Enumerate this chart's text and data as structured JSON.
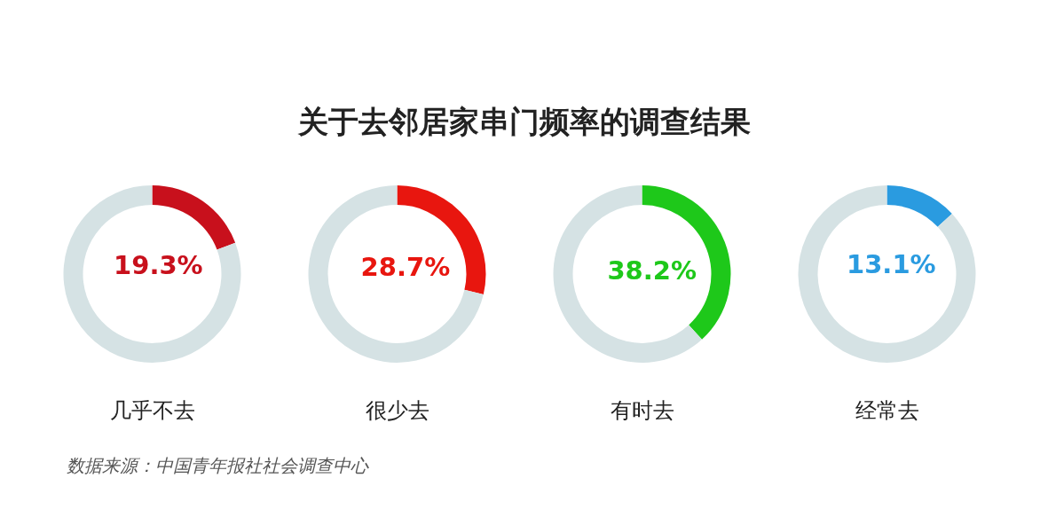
{
  "chart_data": [
    {
      "type": "donut",
      "title": "关于去邻居家串门频率的调查结果",
      "xlabel": "几乎不去",
      "categories": [
        null,
        null
      ],
      "values": [
        19.3,
        80.7
      ],
      "value_labels": [
        "19.3%",
        null
      ],
      "colors": [
        "#c8101c",
        "#d5e2e4"
      ],
      "annotations": [
        "数据来源：中国青年报社社会调查中心"
      ]
    },
    {
      "type": "donut",
      "xlabel": "很少去",
      "categories": [
        null,
        null
      ],
      "values": [
        28.7,
        71.3
      ],
      "value_labels": [
        "28.7%",
        null
      ],
      "colors": [
        "#e8160f",
        "#d5e2e4"
      ]
    },
    {
      "type": "donut",
      "xlabel": "有时去",
      "categories": [
        null,
        null
      ],
      "values": [
        38.2,
        61.8
      ],
      "value_labels": [
        "38.2%",
        null
      ],
      "colors": [
        "#1ec81a",
        "#d5e2e4"
      ]
    },
    {
      "type": "donut",
      "xlabel": "经常去",
      "categories": [
        null,
        null
      ],
      "values": [
        13.1,
        86.9
      ],
      "value_labels": [
        "13.1%",
        null
      ],
      "colors": [
        "#2a9be0",
        "#d5e2e4"
      ]
    }
  ]
}
